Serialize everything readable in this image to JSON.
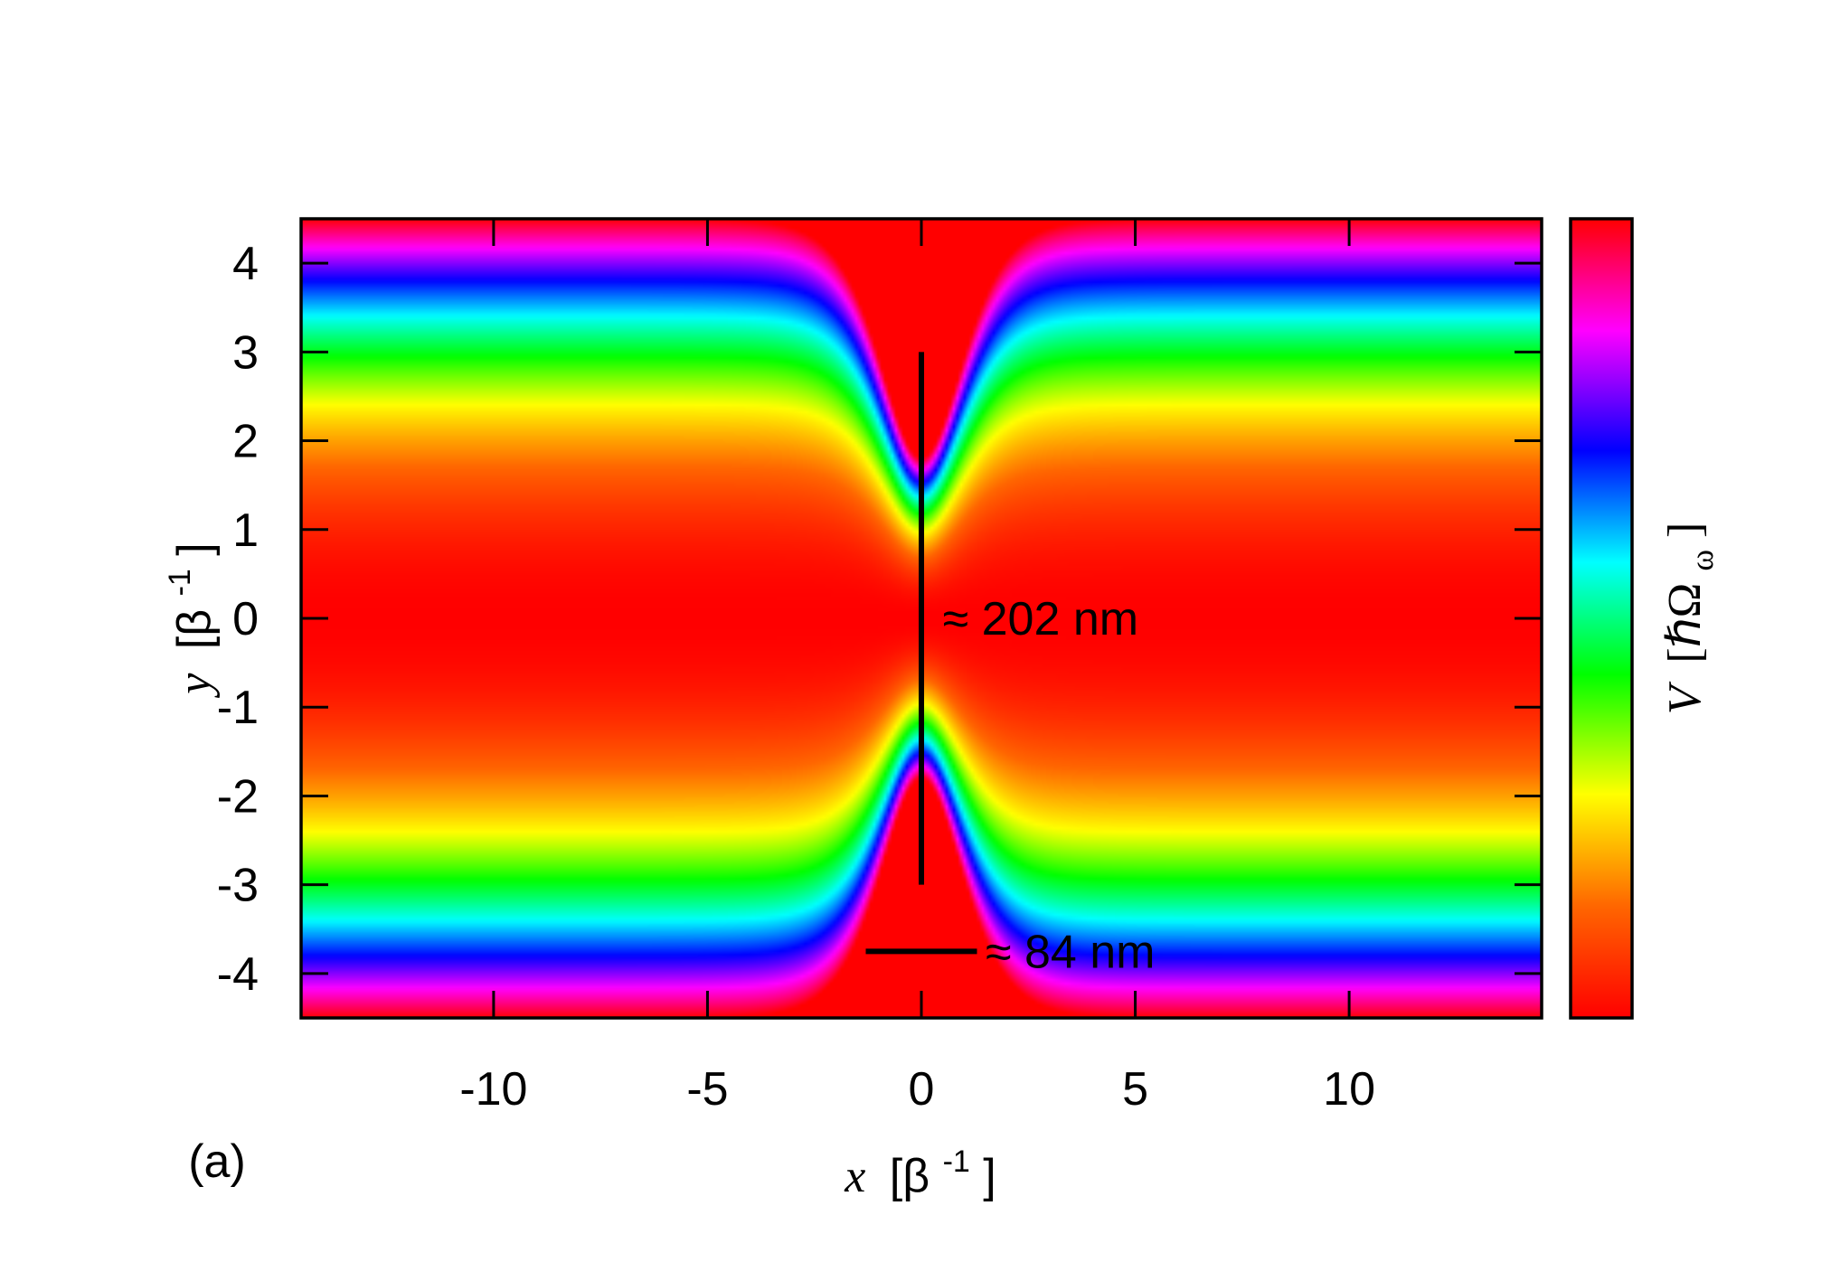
{
  "panel_label": "(a)",
  "chart_data": {
    "type": "heatmap",
    "xlabel_var": "x",
    "xlabel_unit": "[β",
    "xlabel_exp": "-1",
    "xlabel_close": "]",
    "ylabel_var": "y",
    "ylabel_unit": "[β",
    "ylabel_exp": "-1",
    "ylabel_close": "]",
    "colorbar_label_var": "V",
    "colorbar_label_unit": "[ℏΩ",
    "colorbar_label_sub": "ω",
    "colorbar_label_close": "]",
    "xlim": [
      -14.5,
      14.5
    ],
    "ylim": [
      -4.5,
      4.5
    ],
    "xticks": [
      {
        "value": -10,
        "label": "-10"
      },
      {
        "value": -5,
        "label": "-5"
      },
      {
        "value": 0,
        "label": "0"
      },
      {
        "value": 5,
        "label": "5"
      },
      {
        "value": 10,
        "label": "10"
      }
    ],
    "yticks": [
      {
        "value": 4,
        "label": "4"
      },
      {
        "value": 3,
        "label": "3"
      },
      {
        "value": 2,
        "label": "2"
      },
      {
        "value": 1,
        "label": "1"
      },
      {
        "value": 0,
        "label": "0"
      },
      {
        "value": -1,
        "label": "-1"
      },
      {
        "value": -2,
        "label": "-2"
      },
      {
        "value": -3,
        "label": "-3"
      },
      {
        "value": -4,
        "label": "-4"
      }
    ],
    "colormap": [
      "#ff0000",
      "#ff6600",
      "#ffff00",
      "#00ff00",
      "#00ffff",
      "#0000ff",
      "#ff00ff",
      "#ff0000"
    ],
    "annotations": [
      {
        "type": "vline",
        "x": 0,
        "y1": -3,
        "y2": 3,
        "label": "≈ 202 nm",
        "label_x": 0.5,
        "label_y": 0
      },
      {
        "type": "hline",
        "y": -3.75,
        "x1": -1.3,
        "x2": 1.3,
        "label": "≈ 84 nm",
        "label_x": 1.5,
        "label_y": -3.75
      }
    ]
  }
}
